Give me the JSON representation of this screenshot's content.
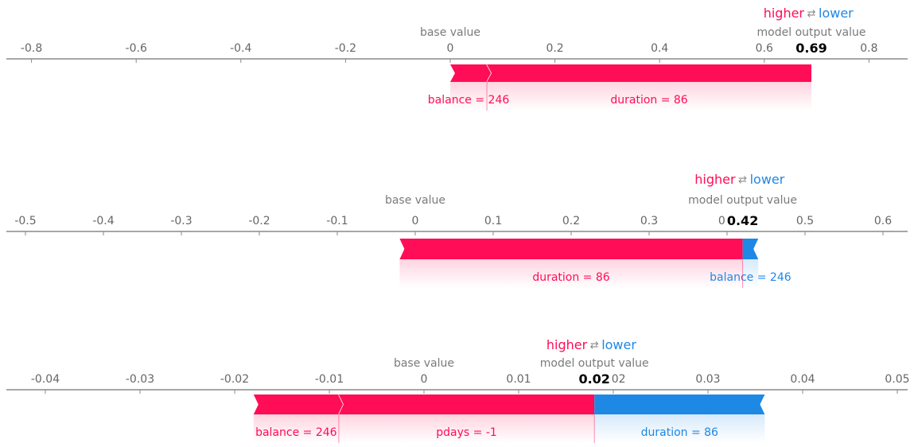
{
  "colors": {
    "positive": "#ff0d57",
    "negative": "#1e88e5",
    "axis": "#8a8a8a",
    "tick_text": "#666666"
  },
  "legend": {
    "higher": "higher",
    "arrows": "⇄",
    "lower": "lower"
  },
  "labels": {
    "base_value": "base value",
    "model_output_value": "model output value"
  },
  "chart_data": [
    {
      "type": "force",
      "ticks": [
        -0.8,
        -0.6,
        -0.4,
        -0.2,
        0,
        0.2,
        0.4,
        0.6,
        0.8
      ],
      "tick_labels": [
        "-0.8",
        "-0.6",
        "-0.4",
        "-0.2",
        "0",
        "0.2",
        "0.4",
        "0.6",
        "0.8"
      ],
      "base_value": 0,
      "output_value": 0.69,
      "output_label": "0.69",
      "features": [
        {
          "label": "balance = 246",
          "contribution": 0.07
        },
        {
          "label": "duration = 86",
          "contribution": 0.62
        }
      ]
    },
    {
      "type": "force",
      "ticks": [
        -0.5,
        -0.4,
        -0.3,
        -0.2,
        -0.1,
        0,
        0.1,
        0.2,
        0.3,
        0.4,
        0.5,
        0.6
      ],
      "tick_labels": [
        "-0.5",
        "-0.4",
        "-0.3",
        "-0.2",
        "-0.1",
        "0",
        "0.1",
        "0.2",
        "0.3",
        "0.4",
        "0.5",
        "0.6"
      ],
      "base_value": 0,
      "output_value": 0.42,
      "output_label": "0.42",
      "features": [
        {
          "label": "duration = 86",
          "contribution": 0.44
        },
        {
          "label": "balance = 246",
          "contribution": -0.02
        }
      ]
    },
    {
      "type": "force",
      "ticks": [
        -0.04,
        -0.03,
        -0.02,
        -0.01,
        0,
        0.01,
        0.02,
        0.03,
        0.04,
        0.05
      ],
      "tick_labels": [
        "-0.04",
        "-0.03",
        "-0.02",
        "-0.01",
        "0",
        "0.01",
        "0.02",
        "0.03",
        "0.04",
        "0.05"
      ],
      "base_value": 0,
      "output_value": 0.018,
      "output_label": "0.02",
      "features": [
        {
          "label": "balance = 246",
          "contribution": 0.009
        },
        {
          "label": "pdays = -1",
          "contribution": 0.027
        },
        {
          "label": "duration = 86",
          "contribution": -0.018
        }
      ]
    }
  ]
}
